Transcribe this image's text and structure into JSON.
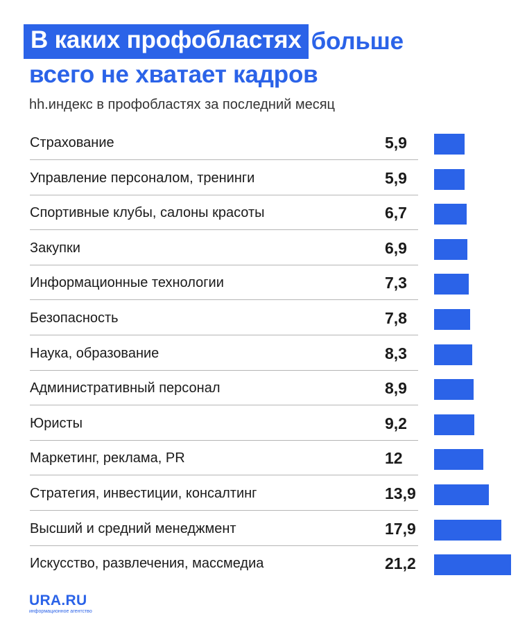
{
  "title": {
    "highlight": "В каких профобластях",
    "rest": "больше",
    "line2": "всего не хватает кадров"
  },
  "subtitle": "hh.индекс в профобластях за последний месяц",
  "brand": {
    "name": "URA.RU",
    "tagline": "информационное агентство"
  },
  "colors": {
    "accent": "#2b63e8",
    "divider": "#b5b5b5"
  },
  "chart_data": {
    "type": "bar",
    "orientation": "horizontal",
    "categories": [
      "Страхование",
      "Управление персоналом, тренинги",
      "Спортивные клубы, салоны красоты",
      "Закупки",
      "Информационные технологии",
      "Безопасность",
      "Наука, образование",
      "Административный персонал",
      "Юристы",
      "Маркетинг, реклама, PR",
      "Стратегия, инвестиции, консалтинг",
      "Высший и средний менеджмент",
      "Искусство, развлечения, массмедиа"
    ],
    "values": [
      5.9,
      5.9,
      6.7,
      6.9,
      7.3,
      7.8,
      8.3,
      8.9,
      9.2,
      12,
      13.9,
      17.9,
      21.2
    ],
    "value_labels": [
      "5,9",
      "5,9",
      "6,7",
      "6,9",
      "7,3",
      "7,8",
      "8,3",
      "8,9",
      "9,2",
      "12",
      "13,9",
      "17,9",
      "21,2"
    ],
    "title": "В каких профобластях больше всего не хватает кадров",
    "subtitle": "hh.индекс в профобластях за последний месяц",
    "grid": false,
    "legend": "none"
  }
}
